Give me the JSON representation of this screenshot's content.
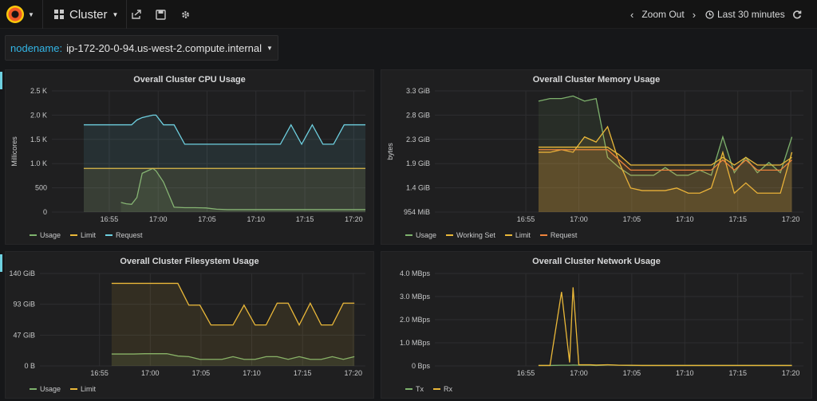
{
  "topbar": {
    "dashboard_title": "Cluster",
    "zoom_out": "Zoom Out",
    "time_range": "Last 30 minutes"
  },
  "variables": {
    "label": "nodename:",
    "value": "ip-172-20-0-94.us-west-2.compute.internal"
  },
  "colors": {
    "usage": "#7eb26d",
    "limit": "#eab839",
    "request": "#6ed0e0",
    "working_set": "#eab839",
    "request_mem": "#ef843c",
    "tx": "#7eb26d",
    "rx": "#eab839"
  },
  "icons": [
    "grafana-logo-icon",
    "dashboard-grid-icon",
    "share-icon",
    "save-icon",
    "gear-icon",
    "chevron-left-icon",
    "chevron-right-icon",
    "clock-icon",
    "refresh-icon"
  ],
  "chart_data": [
    {
      "type": "area",
      "title": "Overall Cluster CPU Usage",
      "ylabel": "Millicores",
      "ytick_labels": [
        "0",
        "500",
        "1.0 K",
        "1.5 K",
        "2.0 K",
        "2.5 K"
      ],
      "ylim": [
        0,
        2500
      ],
      "x_tick_labels": [
        "16:55",
        "17:00",
        "17:05",
        "17:10",
        "17:15",
        "17:20"
      ],
      "x": [
        -3.5,
        -2.5,
        -2,
        -1,
        0,
        0.5,
        1,
        1.5,
        2,
        3,
        3.3,
        4,
        5,
        6,
        7,
        8,
        9,
        10,
        11,
        12,
        13,
        14,
        15,
        16,
        17,
        18,
        19,
        20,
        21,
        22,
        23
      ],
      "series": [
        {
          "name": "Usage",
          "values": [
            null,
            null,
            null,
            null,
            200,
            170,
            160,
            300,
            800,
            900,
            850,
            620,
            100,
            90,
            90,
            85,
            60,
            50,
            50,
            50,
            50,
            50,
            50,
            50,
            50,
            50,
            50,
            50,
            50,
            50,
            50
          ]
        },
        {
          "name": "Limit",
          "values": [
            900,
            900,
            900,
            900,
            900,
            900,
            900,
            900,
            900,
            900,
            900,
            900,
            900,
            900,
            900,
            900,
            900,
            900,
            900,
            900,
            900,
            900,
            900,
            900,
            900,
            900,
            900,
            900,
            900,
            900,
            900
          ]
        },
        {
          "name": "Request",
          "values": [
            1800,
            1800,
            1800,
            1800,
            1800,
            1800,
            1800,
            1900,
            1950,
            2000,
            2000,
            1800,
            1800,
            1400,
            1400,
            1400,
            1400,
            1400,
            1400,
            1400,
            1400,
            1400,
            1400,
            1800,
            1400,
            1800,
            1400,
            1400,
            1800,
            1800,
            1800
          ]
        }
      ]
    },
    {
      "type": "area",
      "title": "Overall Cluster Memory Usage",
      "ylabel": "bytes",
      "ytick_labels": [
        "954 MiB",
        "1.4 GiB",
        "1.9 GiB",
        "2.3 GiB",
        "2.8 GiB",
        "3.3 GiB"
      ],
      "ylim": [
        0.93,
        3.3
      ],
      "x_tick_labels": [
        "16:55",
        "17:00",
        "17:05",
        "17:10",
        "17:15",
        "17:20"
      ],
      "x": [
        0,
        1,
        2,
        3,
        4,
        5,
        6,
        7,
        8,
        9,
        10,
        11,
        12,
        13,
        14,
        15,
        16,
        17,
        18,
        19,
        20,
        21,
        22
      ],
      "series": [
        {
          "name": "Usage",
          "values": [
            3.1,
            3.15,
            3.15,
            3.2,
            3.1,
            3.15,
            2.0,
            1.8,
            1.65,
            1.65,
            1.65,
            1.8,
            1.65,
            1.65,
            1.75,
            1.65,
            2.4,
            1.7,
            2.0,
            1.7,
            1.9,
            1.7,
            2.4
          ]
        },
        {
          "name": "Working Set",
          "values": [
            2.1,
            2.1,
            2.15,
            2.1,
            2.4,
            2.3,
            2.6,
            1.9,
            1.4,
            1.35,
            1.35,
            1.35,
            1.4,
            1.3,
            1.3,
            1.4,
            2.1,
            1.3,
            1.5,
            1.3,
            1.3,
            1.3,
            2.1
          ]
        },
        {
          "name": "Limit",
          "values": [
            2.2,
            2.2,
            2.2,
            2.2,
            2.2,
            2.2,
            2.2,
            2.05,
            1.85,
            1.85,
            1.85,
            1.85,
            1.85,
            1.85,
            1.85,
            1.85,
            2.0,
            1.85,
            2.0,
            1.85,
            1.85,
            1.85,
            2.0
          ]
        },
        {
          "name": "Request",
          "values": [
            2.15,
            2.15,
            2.15,
            2.15,
            2.15,
            2.15,
            2.15,
            1.95,
            1.75,
            1.75,
            1.75,
            1.75,
            1.75,
            1.75,
            1.75,
            1.75,
            1.95,
            1.75,
            1.95,
            1.75,
            1.75,
            1.75,
            1.95
          ]
        }
      ]
    },
    {
      "type": "area",
      "title": "Overall Cluster Filesystem Usage",
      "ytick_labels": [
        "0 B",
        "47 GiB",
        "93 GiB",
        "140 GiB"
      ],
      "ylim": [
        0,
        140
      ],
      "x_tick_labels": [
        "16:55",
        "17:00",
        "17:05",
        "17:10",
        "17:15",
        "17:20"
      ],
      "x": [
        0,
        1,
        2,
        3,
        4,
        5,
        6,
        7,
        8,
        9,
        10,
        11,
        12,
        13,
        14,
        15,
        16,
        17,
        18,
        19,
        20,
        21,
        22
      ],
      "series": [
        {
          "name": "Usage",
          "values": [
            18,
            18,
            18,
            18.5,
            18.5,
            18.5,
            15,
            14,
            10,
            10,
            10,
            14,
            10,
            10,
            14,
            14,
            10,
            14,
            10,
            10,
            14,
            10,
            14
          ]
        },
        {
          "name": "Limit",
          "values": [
            125,
            125,
            125,
            125,
            125,
            125,
            125,
            92,
            92,
            62,
            62,
            62,
            92,
            62,
            62,
            95,
            95,
            62,
            95,
            62,
            62,
            95,
            95
          ]
        }
      ]
    },
    {
      "type": "line",
      "title": "Overall Cluster Network Usage",
      "ytick_labels": [
        "0 Bps",
        "1.0 MBps",
        "2.0 MBps",
        "3.0 MBps",
        "4.0 MBps"
      ],
      "ylim": [
        0,
        4
      ],
      "x_tick_labels": [
        "16:55",
        "17:00",
        "17:05",
        "17:10",
        "17:15",
        "17:20"
      ],
      "x": [
        0,
        1,
        2,
        2.7,
        3,
        3.5,
        4,
        4.5,
        5,
        6,
        7,
        8,
        9,
        10,
        12,
        14,
        16,
        18,
        20,
        22
      ],
      "series": [
        {
          "name": "Tx",
          "values": [
            0.02,
            0.02,
            0.03,
            0.03,
            0.04,
            0.03,
            0.03,
            0.03,
            0.02,
            0.04,
            0.03,
            0.02,
            0.02,
            0.02,
            0.02,
            0.02,
            0.02,
            0.02,
            0.02,
            0.02
          ]
        },
        {
          "name": "Rx",
          "values": [
            0.02,
            0.02,
            3.2,
            0.15,
            3.4,
            0.05,
            0.05,
            0.05,
            0.04,
            0.05,
            0.03,
            0.03,
            0.02,
            0.02,
            0.02,
            0.02,
            0.02,
            0.02,
            0.02,
            0.02
          ]
        }
      ]
    }
  ]
}
